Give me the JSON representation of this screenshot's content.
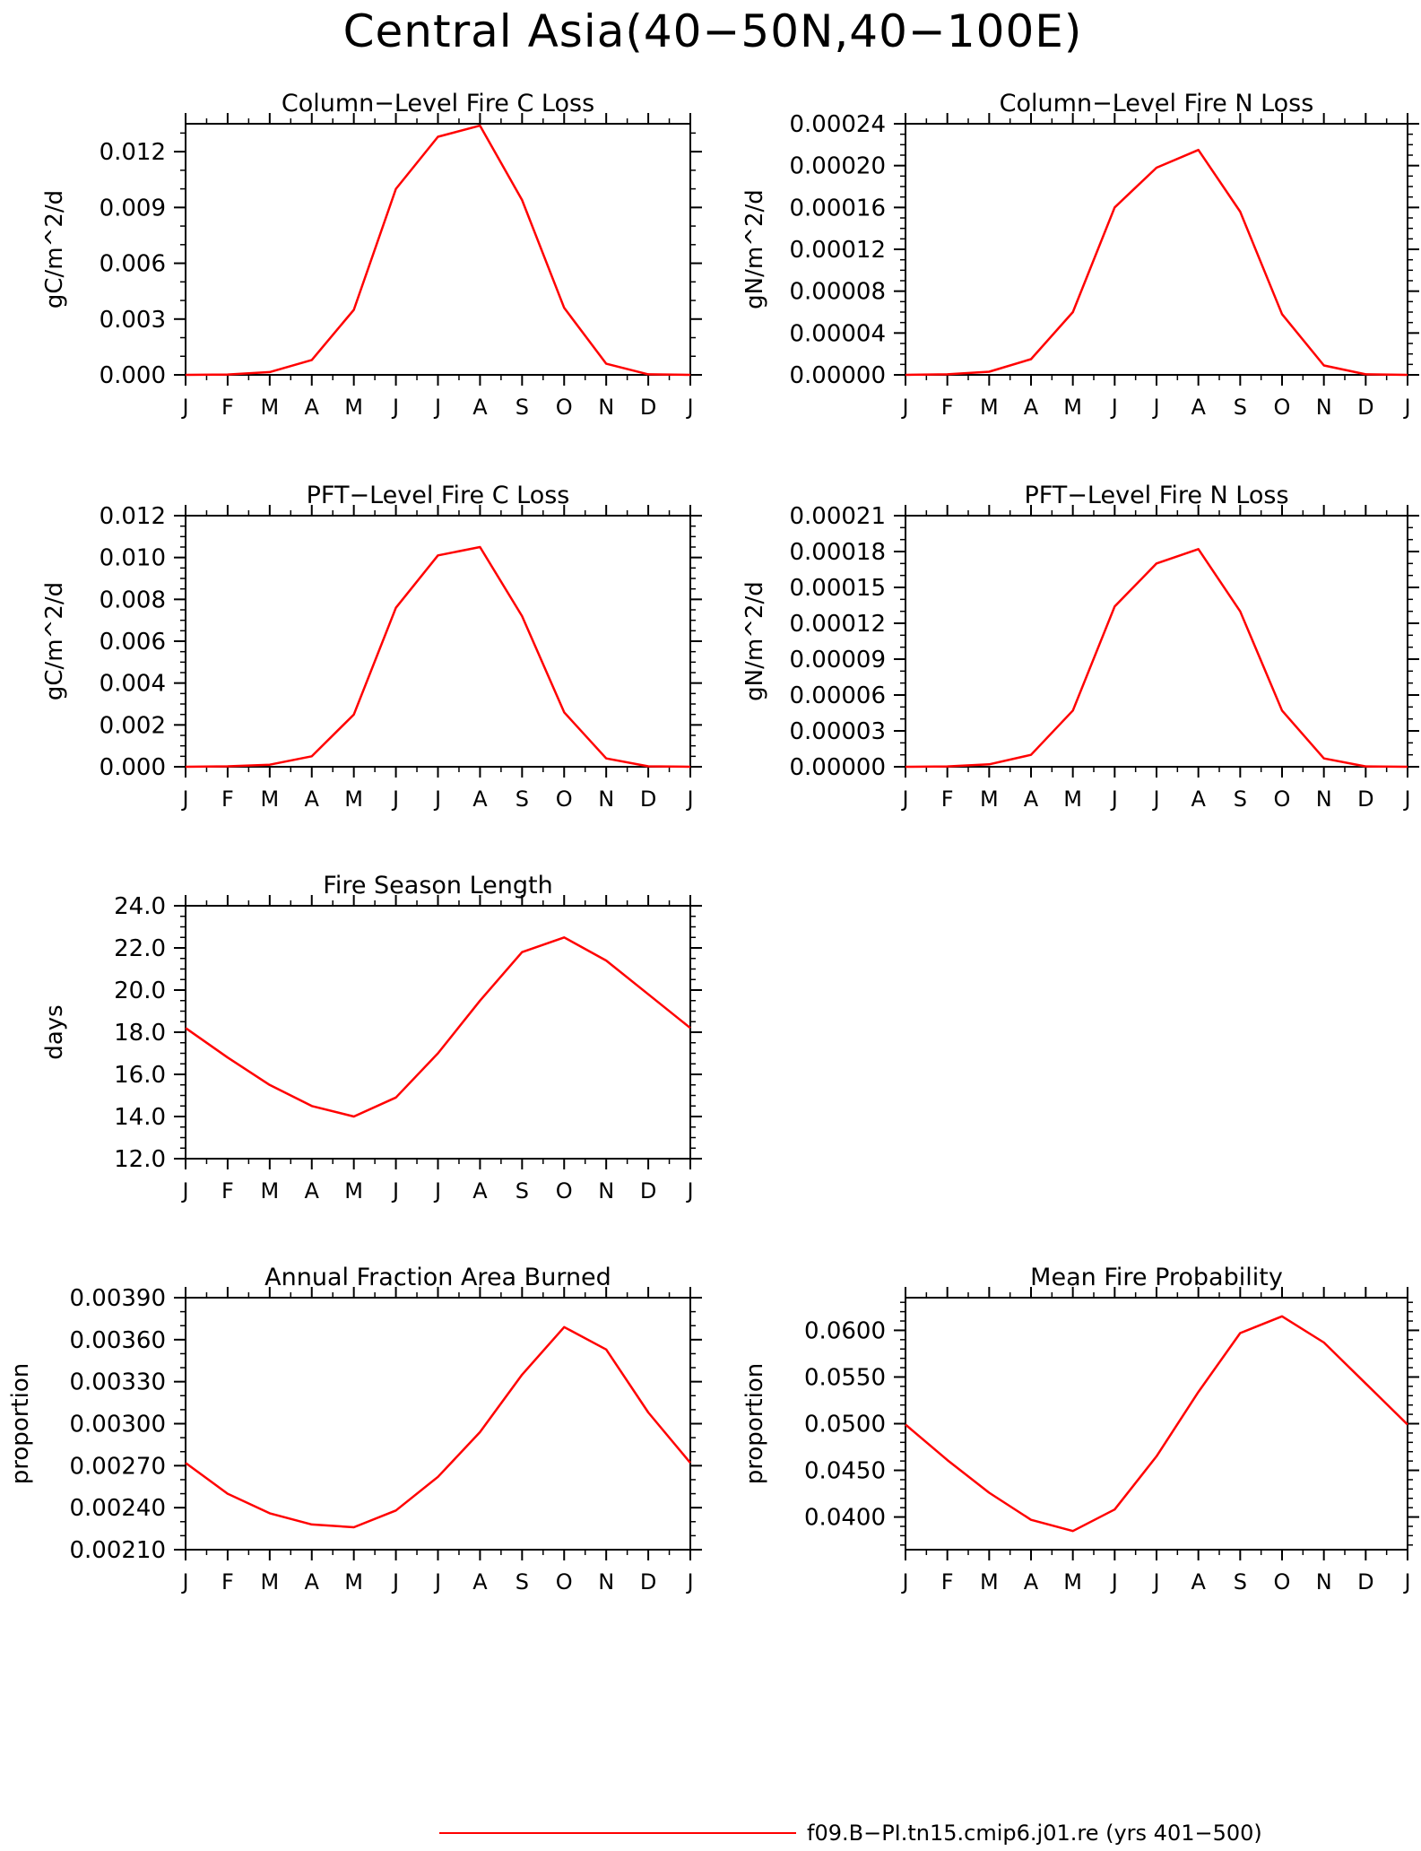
{
  "figure": {
    "title": "Central Asia(40−50N,40−100E)",
    "legend": {
      "label": "f09.B−PI.tn15.cmip6.j01.re (yrs 401−500)",
      "color": "#ff0000"
    }
  },
  "chart_data": [
    {
      "id": "colC",
      "type": "line",
      "title": "Column−Level Fire C Loss",
      "xlabel": "",
      "ylabel": "gC/m^2/d",
      "categories": [
        "J",
        "F",
        "M",
        "A",
        "M",
        "J",
        "J",
        "A",
        "S",
        "O",
        "N",
        "D",
        "J"
      ],
      "ylim": [
        0,
        0.0135
      ],
      "yticks": [
        "0.000",
        "0.003",
        "0.006",
        "0.009",
        "0.012"
      ],
      "ytick_values": [
        0,
        0.003,
        0.006,
        0.009,
        0.012
      ],
      "minor_step": 0.001,
      "series": [
        {
          "values": [
            0.0,
            2e-05,
            0.00015,
            0.0008,
            0.0035,
            0.01,
            0.0128,
            0.0134,
            0.0094,
            0.0036,
            0.0006,
            3e-05,
            0.0
          ],
          "color": "#ff0000"
        }
      ]
    },
    {
      "id": "colN",
      "type": "line",
      "title": "Column−Level Fire N Loss",
      "xlabel": "",
      "ylabel": "gN/m^2/d",
      "categories": [
        "J",
        "F",
        "M",
        "A",
        "M",
        "J",
        "J",
        "A",
        "S",
        "O",
        "N",
        "D",
        "J"
      ],
      "ylim": [
        0,
        0.00024
      ],
      "yticks": [
        "0.00000",
        "0.00004",
        "0.00008",
        "0.00012",
        "0.00016",
        "0.00020",
        "0.00024"
      ],
      "ytick_values": [
        0,
        4e-05,
        8e-05,
        0.00012,
        0.00016,
        0.0002,
        0.00024
      ],
      "minor_step": 1e-05,
      "series": [
        {
          "values": [
            0.0,
            5e-07,
            3e-06,
            1.5e-05,
            6e-05,
            0.00016,
            0.000198,
            0.000215,
            0.000156,
            5.8e-05,
            9e-06,
            5e-07,
            0.0
          ],
          "color": "#ff0000"
        }
      ]
    },
    {
      "id": "pftC",
      "type": "line",
      "title": "PFT−Level Fire C Loss",
      "xlabel": "",
      "ylabel": "gC/m^2/d",
      "categories": [
        "J",
        "F",
        "M",
        "A",
        "M",
        "J",
        "J",
        "A",
        "S",
        "O",
        "N",
        "D",
        "J"
      ],
      "ylim": [
        0,
        0.012
      ],
      "yticks": [
        "0.000",
        "0.002",
        "0.004",
        "0.006",
        "0.008",
        "0.010",
        "0.012"
      ],
      "ytick_values": [
        0,
        0.002,
        0.004,
        0.006,
        0.008,
        0.01,
        0.012
      ],
      "minor_step": 0.0005,
      "series": [
        {
          "values": [
            0.0,
            2e-05,
            0.0001,
            0.0005,
            0.0025,
            0.0076,
            0.0101,
            0.0105,
            0.0072,
            0.0026,
            0.0004,
            2e-05,
            0.0
          ],
          "color": "#ff0000"
        }
      ]
    },
    {
      "id": "pftN",
      "type": "line",
      "title": "PFT−Level Fire N Loss",
      "xlabel": "",
      "ylabel": "gN/m^2/d",
      "categories": [
        "J",
        "F",
        "M",
        "A",
        "M",
        "J",
        "J",
        "A",
        "S",
        "O",
        "N",
        "D",
        "J"
      ],
      "ylim": [
        0,
        0.00021
      ],
      "yticks": [
        "0.00000",
        "0.00003",
        "0.00006",
        "0.00009",
        "0.00012",
        "0.00015",
        "0.00018",
        "0.00021"
      ],
      "ytick_values": [
        0,
        3e-05,
        6e-05,
        9e-05,
        0.00012,
        0.00015,
        0.00018,
        0.00021
      ],
      "minor_step": 1e-05,
      "series": [
        {
          "values": [
            0.0,
            3e-07,
            2e-06,
            1e-05,
            4.7e-05,
            0.000134,
            0.00017,
            0.000182,
            0.00013,
            4.7e-05,
            7e-06,
            3e-07,
            0.0
          ],
          "color": "#ff0000"
        }
      ]
    },
    {
      "id": "season",
      "type": "line",
      "title": "Fire Season Length",
      "xlabel": "",
      "ylabel": "days",
      "categories": [
        "J",
        "F",
        "M",
        "A",
        "M",
        "J",
        "J",
        "A",
        "S",
        "O",
        "N",
        "D",
        "J"
      ],
      "ylim": [
        12,
        24
      ],
      "yticks": [
        "12.0",
        "14.0",
        "16.0",
        "18.0",
        "20.0",
        "22.0",
        "24.0"
      ],
      "ytick_values": [
        12,
        14,
        16,
        18,
        20,
        22,
        24
      ],
      "minor_step": 0.5,
      "series": [
        {
          "values": [
            18.2,
            16.8,
            15.5,
            14.5,
            14.0,
            14.9,
            17.0,
            19.5,
            21.8,
            22.5,
            21.4,
            19.8,
            18.2
          ],
          "color": "#ff0000"
        }
      ]
    },
    {
      "id": "annfrac",
      "type": "line",
      "title": "Annual Fraction Area Burned",
      "xlabel": "",
      "ylabel": "proportion",
      "categories": [
        "J",
        "F",
        "M",
        "A",
        "M",
        "J",
        "J",
        "A",
        "S",
        "O",
        "N",
        "D",
        "J"
      ],
      "ylim": [
        0.0021,
        0.0039
      ],
      "yticks": [
        "0.00210",
        "0.00240",
        "0.00270",
        "0.00300",
        "0.00330",
        "0.00360",
        "0.00390"
      ],
      "ytick_values": [
        0.0021,
        0.0024,
        0.0027,
        0.003,
        0.0033,
        0.0036,
        0.0039
      ],
      "minor_step": 0.0001,
      "series": [
        {
          "values": [
            0.00272,
            0.0025,
            0.00236,
            0.00228,
            0.00226,
            0.00238,
            0.00262,
            0.00294,
            0.00335,
            0.00369,
            0.00353,
            0.00308,
            0.00272
          ],
          "color": "#ff0000"
        }
      ]
    },
    {
      "id": "fireprob",
      "type": "line",
      "title": "Mean Fire Probability",
      "xlabel": "",
      "ylabel": "proportion",
      "categories": [
        "J",
        "F",
        "M",
        "A",
        "M",
        "J",
        "J",
        "A",
        "S",
        "O",
        "N",
        "D",
        "J"
      ],
      "ylim": [
        0.0365,
        0.0635
      ],
      "yticks": [
        "0.0400",
        "0.0450",
        "0.0500",
        "0.0550",
        "0.0600"
      ],
      "ytick_values": [
        0.04,
        0.045,
        0.05,
        0.055,
        0.06
      ],
      "minor_step": 0.001,
      "series": [
        {
          "values": [
            0.0499,
            0.0461,
            0.0426,
            0.0397,
            0.0385,
            0.0408,
            0.0465,
            0.0534,
            0.0597,
            0.0615,
            0.0587,
            0.0543,
            0.0499
          ],
          "color": "#ff0000"
        }
      ]
    }
  ]
}
